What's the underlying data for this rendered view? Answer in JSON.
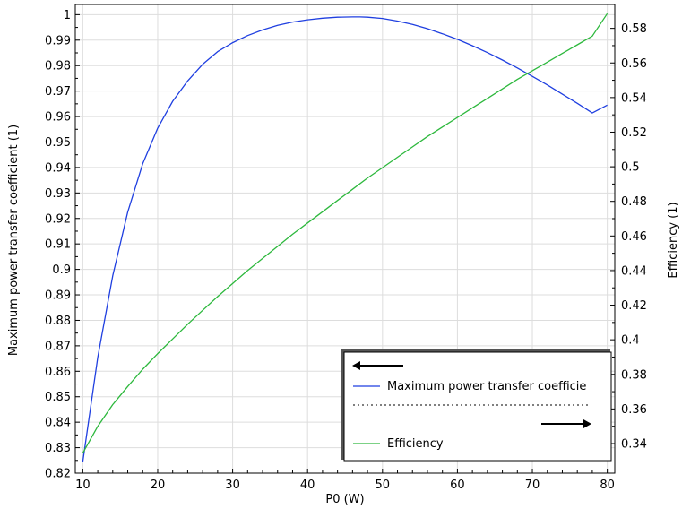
{
  "chart_data": {
    "type": "line",
    "title": "",
    "xlabel": "P0 (W)",
    "ylabel_left": "Maximum power transfer coefficient (1)",
    "ylabel_right": "Efficiency (1)",
    "xlim": [
      9,
      81
    ],
    "ylim_left": [
      0.82,
      1.004
    ],
    "ylim_right": [
      0.3229,
      0.5938
    ],
    "grid": true,
    "x_ticks": [
      10,
      20,
      30,
      40,
      50,
      60,
      70,
      80
    ],
    "x_tick_labels": [
      "10",
      "20",
      "30",
      "40",
      "50",
      "60",
      "70",
      "80"
    ],
    "y_left_ticks": [
      0.82,
      0.83,
      0.84,
      0.85,
      0.86,
      0.87,
      0.88,
      0.89,
      0.9,
      0.91,
      0.92,
      0.93,
      0.94,
      0.95,
      0.96,
      0.97,
      0.98,
      0.99,
      1
    ],
    "y_left_tick_labels": [
      "0.82",
      "0.83",
      "0.84",
      "0.85",
      "0.86",
      "0.87",
      "0.88",
      "0.89",
      "0.9",
      "0.91",
      "0.92",
      "0.93",
      "0.94",
      "0.95",
      "0.96",
      "0.97",
      "0.98",
      "0.99",
      "1"
    ],
    "y_right_ticks": [
      0.34,
      0.36,
      0.38,
      0.4,
      0.42,
      0.44,
      0.46,
      0.48,
      0.5,
      0.52,
      0.54,
      0.56,
      0.58
    ],
    "y_right_tick_labels": [
      "0.34",
      "0.36",
      "0.38",
      "0.4",
      "0.42",
      "0.44",
      "0.46",
      "0.48",
      "0.5",
      "0.52",
      "0.54",
      "0.56",
      "0.58"
    ],
    "legend_position": "bottom-right",
    "series": [
      {
        "name": "Maximum power transfer coefficie",
        "axis": "left",
        "color": "#1f3fe0",
        "x": [
          10,
          12,
          14,
          16,
          18,
          20,
          22,
          24,
          26,
          28,
          30,
          32,
          34,
          36,
          38,
          40,
          42,
          44,
          46,
          47,
          48,
          50,
          52,
          54,
          56,
          58,
          60,
          62,
          64,
          66,
          68,
          70,
          72,
          74,
          76,
          78,
          80
        ],
        "values": [
          0.8245,
          0.8655,
          0.8975,
          0.9225,
          0.9415,
          0.9555,
          0.966,
          0.974,
          0.9805,
          0.9855,
          0.989,
          0.9918,
          0.994,
          0.9958,
          0.9971,
          0.998,
          0.9986,
          0.999,
          0.9991,
          0.9991,
          0.999,
          0.9985,
          0.9975,
          0.9962,
          0.9945,
          0.9925,
          0.9903,
          0.9878,
          0.9851,
          0.9822,
          0.9791,
          0.9758,
          0.9724,
          0.9688,
          0.9652,
          0.9614,
          0.9645
        ]
      },
      {
        "name": "Efficiency",
        "axis": "right",
        "color": "#2db83d",
        "x": [
          10,
          12,
          14,
          16,
          18,
          20,
          22,
          24,
          26,
          28,
          30,
          32,
          34,
          36,
          38,
          40,
          42,
          44,
          46,
          48,
          50,
          52,
          54,
          56,
          58,
          60,
          62,
          64,
          66,
          68,
          70,
          72,
          74,
          76,
          78,
          80
        ],
        "values": [
          0.3345,
          0.35,
          0.3625,
          0.373,
          0.383,
          0.392,
          0.4005,
          0.409,
          0.417,
          0.425,
          0.4325,
          0.44,
          0.447,
          0.454,
          0.461,
          0.4675,
          0.474,
          0.4805,
          0.487,
          0.4935,
          0.4995,
          0.5055,
          0.5115,
          0.5175,
          0.523,
          0.5285,
          0.534,
          0.5395,
          0.545,
          0.5505,
          0.5555,
          0.5605,
          0.5655,
          0.5705,
          0.5755,
          0.5885
        ]
      }
    ]
  }
}
